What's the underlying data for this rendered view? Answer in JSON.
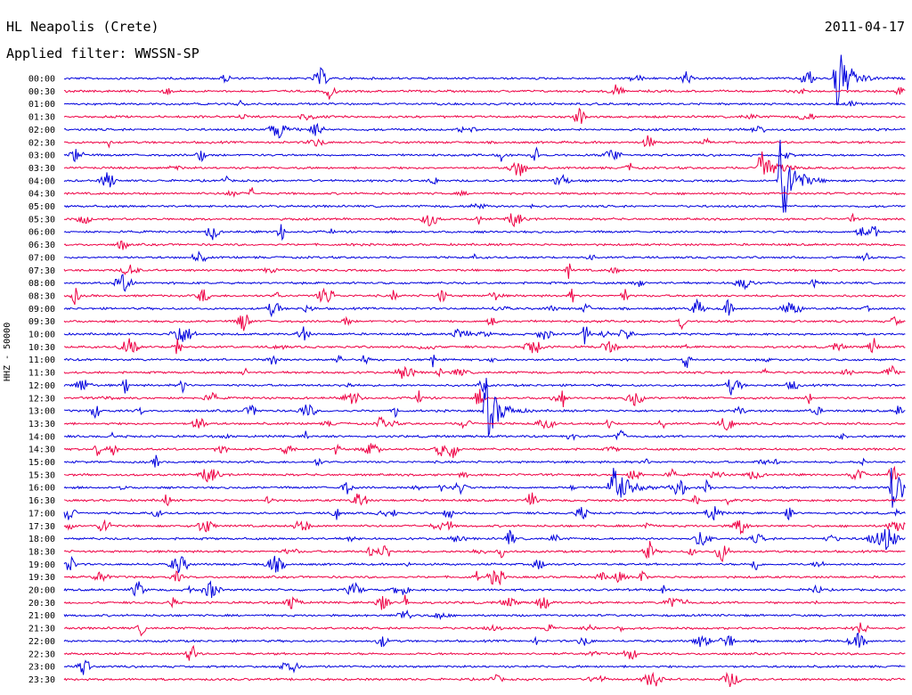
{
  "header": {
    "station": "HL Neapolis (Crete)",
    "date": "2011-04-17",
    "filter": "Applied filter: WWSSN-SP"
  },
  "channel_label": "HHZ - 50000",
  "colors": {
    "trace_a": "#0000dd",
    "trace_b": "#ee0044",
    "background": "#ffffff"
  },
  "chart_data": {
    "type": "line",
    "title": "HL Neapolis (Crete)",
    "subtitle": "Applied filter: WWSSN-SP",
    "ylabel": "HHZ - 50000",
    "xlabel": "",
    "row_minutes": 30,
    "rows": [
      "00:00",
      "00:30",
      "01:00",
      "01:30",
      "02:00",
      "02:30",
      "03:00",
      "03:30",
      "04:00",
      "04:30",
      "05:00",
      "05:30",
      "06:00",
      "06:30",
      "07:00",
      "07:30",
      "08:00",
      "08:30",
      "09:00",
      "09:30",
      "10:00",
      "10:30",
      "11:00",
      "11:30",
      "12:00",
      "12:30",
      "13:00",
      "13:30",
      "14:00",
      "14:30",
      "15:00",
      "15:30",
      "16:00",
      "16:30",
      "17:00",
      "17:30",
      "18:00",
      "18:30",
      "19:00",
      "19:30",
      "20:00",
      "20:30",
      "21:00",
      "21:30",
      "22:00",
      "22:30",
      "23:00",
      "23:30"
    ],
    "major_events": [
      {
        "row": "00:00",
        "minute": 27.5,
        "amplitude": 3.2
      },
      {
        "row": "03:30",
        "minute": 24.8,
        "amplitude": 2.0
      },
      {
        "row": "04:00",
        "minute": 25.5,
        "amplitude": 4.5
      },
      {
        "row": "13:00",
        "minute": 15.0,
        "amplitude": 3.0
      },
      {
        "row": "16:00",
        "minute": 19.5,
        "amplitude": 2.5
      },
      {
        "row": "16:00",
        "minute": 29.5,
        "amplitude": 1.8
      }
    ]
  }
}
